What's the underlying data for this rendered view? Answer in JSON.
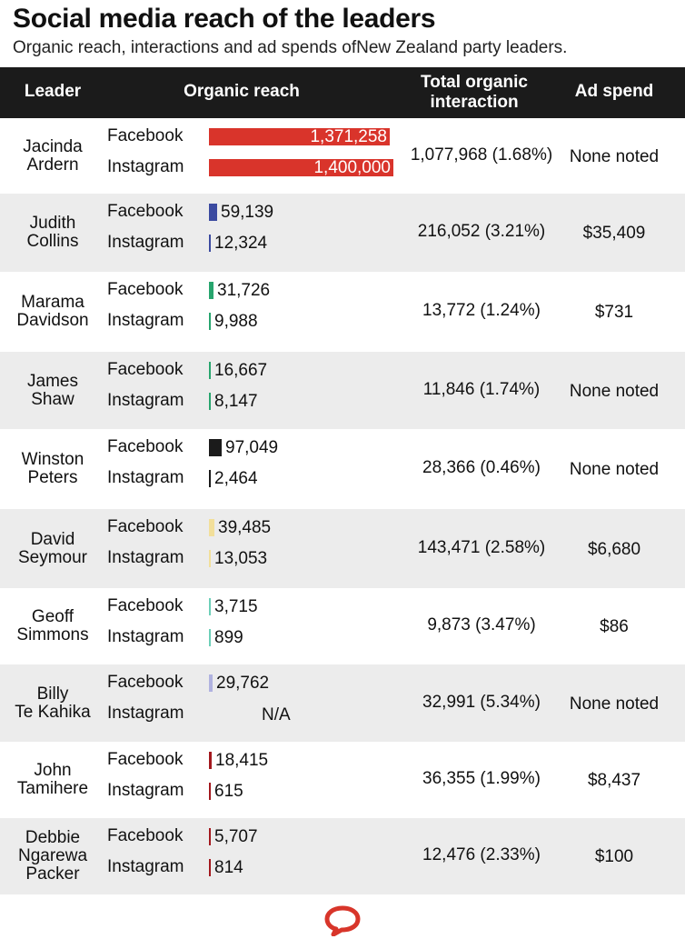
{
  "title": "Social media reach of the leaders",
  "subtitle": "Organic reach, interactions and ad spends ofNew Zealand party leaders.",
  "headers": {
    "leader": "Leader",
    "reach": "Organic reach",
    "total_line1": "Total organic",
    "total_line2": "interaction",
    "ad": "Ad spend"
  },
  "platform_labels": {
    "facebook": "Facebook",
    "instagram": "Instagram"
  },
  "chart_data": {
    "type": "table",
    "columns": [
      "Leader",
      "Organic reach",
      "Total organic interaction",
      "Ad spend"
    ],
    "scale_max": 1400000,
    "rows": [
      {
        "leader_lines": [
          "Jacinda",
          "Ardern"
        ],
        "color": "#d9342b",
        "facebook": 1371258,
        "facebook_label": "1,371,258",
        "instagram": 1400000,
        "instagram_label": "1,400,000",
        "total": "1,077,968 (1.68%)",
        "ad": "None noted"
      },
      {
        "leader_lines": [
          "Judith",
          "Collins"
        ],
        "color": "#3b4aa0",
        "facebook": 59139,
        "facebook_label": "59,139",
        "instagram": 12324,
        "instagram_label": "12,324",
        "total": "216,052 (3.21%)",
        "ad": "$35,409"
      },
      {
        "leader_lines": [
          "Marama",
          "Davidson"
        ],
        "color": "#27a56e",
        "facebook": 31726,
        "facebook_label": "31,726",
        "instagram": 9988,
        "instagram_label": "9,988",
        "total": "13,772 (1.24%)",
        "ad": "$731"
      },
      {
        "leader_lines": [
          "James",
          "Shaw"
        ],
        "color": "#27a56e",
        "facebook": 16667,
        "facebook_label": "16,667",
        "instagram": 8147,
        "instagram_label": "8,147",
        "total": "11,846 (1.74%)",
        "ad": "None noted"
      },
      {
        "leader_lines": [
          "Winston",
          "Peters"
        ],
        "color": "#1b1b1b",
        "facebook": 97049,
        "facebook_label": "97,049",
        "instagram": 2464,
        "instagram_label": "2,464",
        "total": "28,366 (0.46%)",
        "ad": "None noted"
      },
      {
        "leader_lines": [
          "David",
          "Seymour"
        ],
        "color": "#f2df9a",
        "facebook": 39485,
        "facebook_label": "39,485",
        "instagram": 13053,
        "instagram_label": "13,053",
        "total": "143,471 (2.58%)",
        "ad": "$6,680"
      },
      {
        "leader_lines": [
          "Geoff",
          "Simmons"
        ],
        "color": "#6ccfb8",
        "facebook": 3715,
        "facebook_label": "3,715",
        "instagram": 899,
        "instagram_label": "899",
        "total": "9,873 (3.47%)",
        "ad": "$86"
      },
      {
        "leader_lines": [
          "Billy",
          "Te Kahika"
        ],
        "color": "#b0b2e0",
        "facebook": 29762,
        "facebook_label": "29,762",
        "instagram": null,
        "instagram_label": "N/A",
        "total": "32,991 (5.34%)",
        "ad": "None noted"
      },
      {
        "leader_lines": [
          "John",
          "Tamihere"
        ],
        "color": "#a3181e",
        "facebook": 18415,
        "facebook_label": "18,415",
        "instagram": 615,
        "instagram_label": "615",
        "total": "36,355 (1.99%)",
        "ad": "$8,437"
      },
      {
        "leader_lines": [
          "Debbie",
          "Ngarewa",
          "Packer"
        ],
        "color": "#a3181e",
        "facebook": 5707,
        "facebook_label": "5,707",
        "instagram": 814,
        "instagram_label": "814",
        "total": "12,476 (2.33%)",
        "ad": "$100"
      }
    ]
  },
  "logo": {
    "icon": "speech-bubble-icon",
    "color": "#d8352a"
  }
}
